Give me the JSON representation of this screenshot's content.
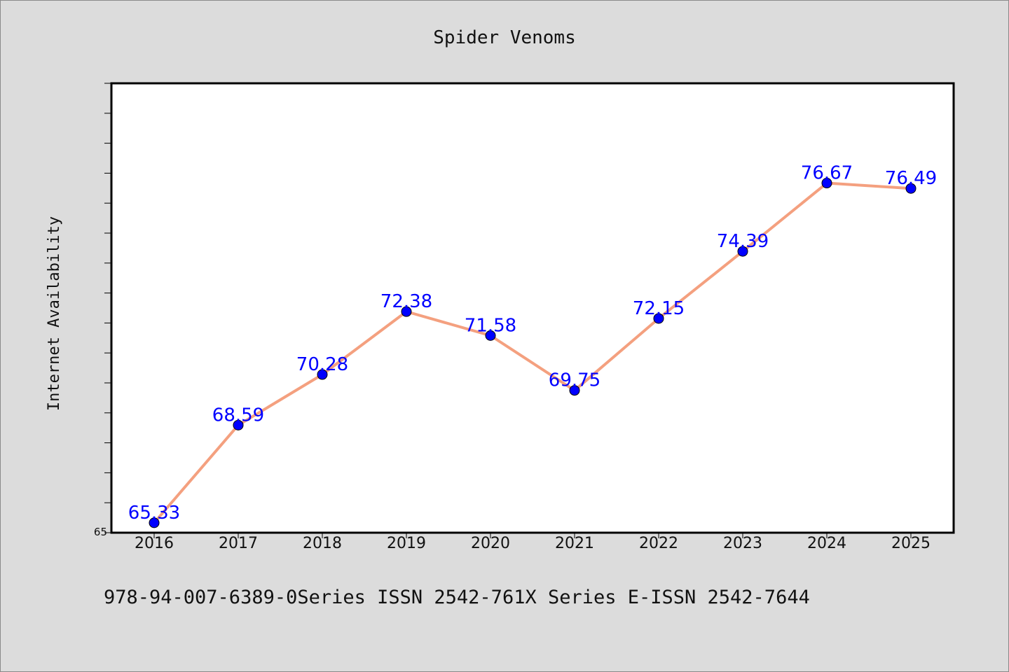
{
  "chart_data": {
    "type": "line",
    "title": "Spider Venoms",
    "xlabel": "",
    "ylabel": "Internet Availability",
    "categories": [
      "2016",
      "2017",
      "2018",
      "2019",
      "2020",
      "2021",
      "2022",
      "2023",
      "2024",
      "2025"
    ],
    "series": [
      {
        "values": [
          65.33,
          68.59,
          70.28,
          72.38,
          71.58,
          69.75,
          72.15,
          74.39,
          76.67,
          76.49
        ],
        "data_labels": [
          "65.33",
          "68.59",
          "70.28",
          "72.38",
          "71.58",
          "69.75",
          "72.15",
          "74.39",
          "76.67",
          "76.49"
        ]
      }
    ],
    "ylim": [
      65,
      80
    ],
    "yticks_labeled": [
      "65"
    ],
    "grid": false,
    "colors": {
      "line": "#f4a07f",
      "marker": "#0000ff",
      "label": "#0000ff"
    }
  },
  "footer": {
    "text": "978-94-007-6389-0Series ISSN 2542-761X Series E-ISSN 2542-7644"
  }
}
